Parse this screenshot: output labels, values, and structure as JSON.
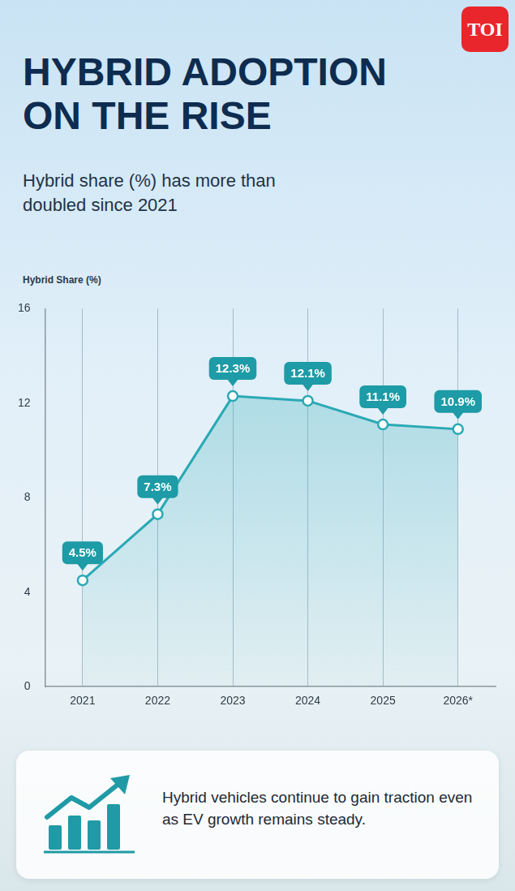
{
  "chart_data": {
    "type": "line",
    "title": "HYBRID ADOPTION ON THE RISE",
    "subtitle": "Hybrid share (%) has more than doubled since 2021",
    "ylabel": "Hybrid Share (%)",
    "logo_text": "TOI",
    "caption": "Hybrid vehicles continue to gain traction even as EV growth remains steady.",
    "categories": [
      "2021",
      "2022",
      "2023",
      "2024",
      "2025",
      "2026*"
    ],
    "values": [
      4.5,
      7.3,
      12.3,
      12.1,
      11.1,
      10.9
    ],
    "value_labels": [
      "4.5%",
      "7.3%",
      "12.3%",
      "12.1%",
      "11.1%",
      "10.9%"
    ],
    "color": "#2aa9b4",
    "ylim": [
      0,
      16
    ],
    "yticks": [
      0,
      4,
      8,
      12,
      16
    ],
    "grid": "x",
    "data_labels": true,
    "marker": "circle"
  }
}
